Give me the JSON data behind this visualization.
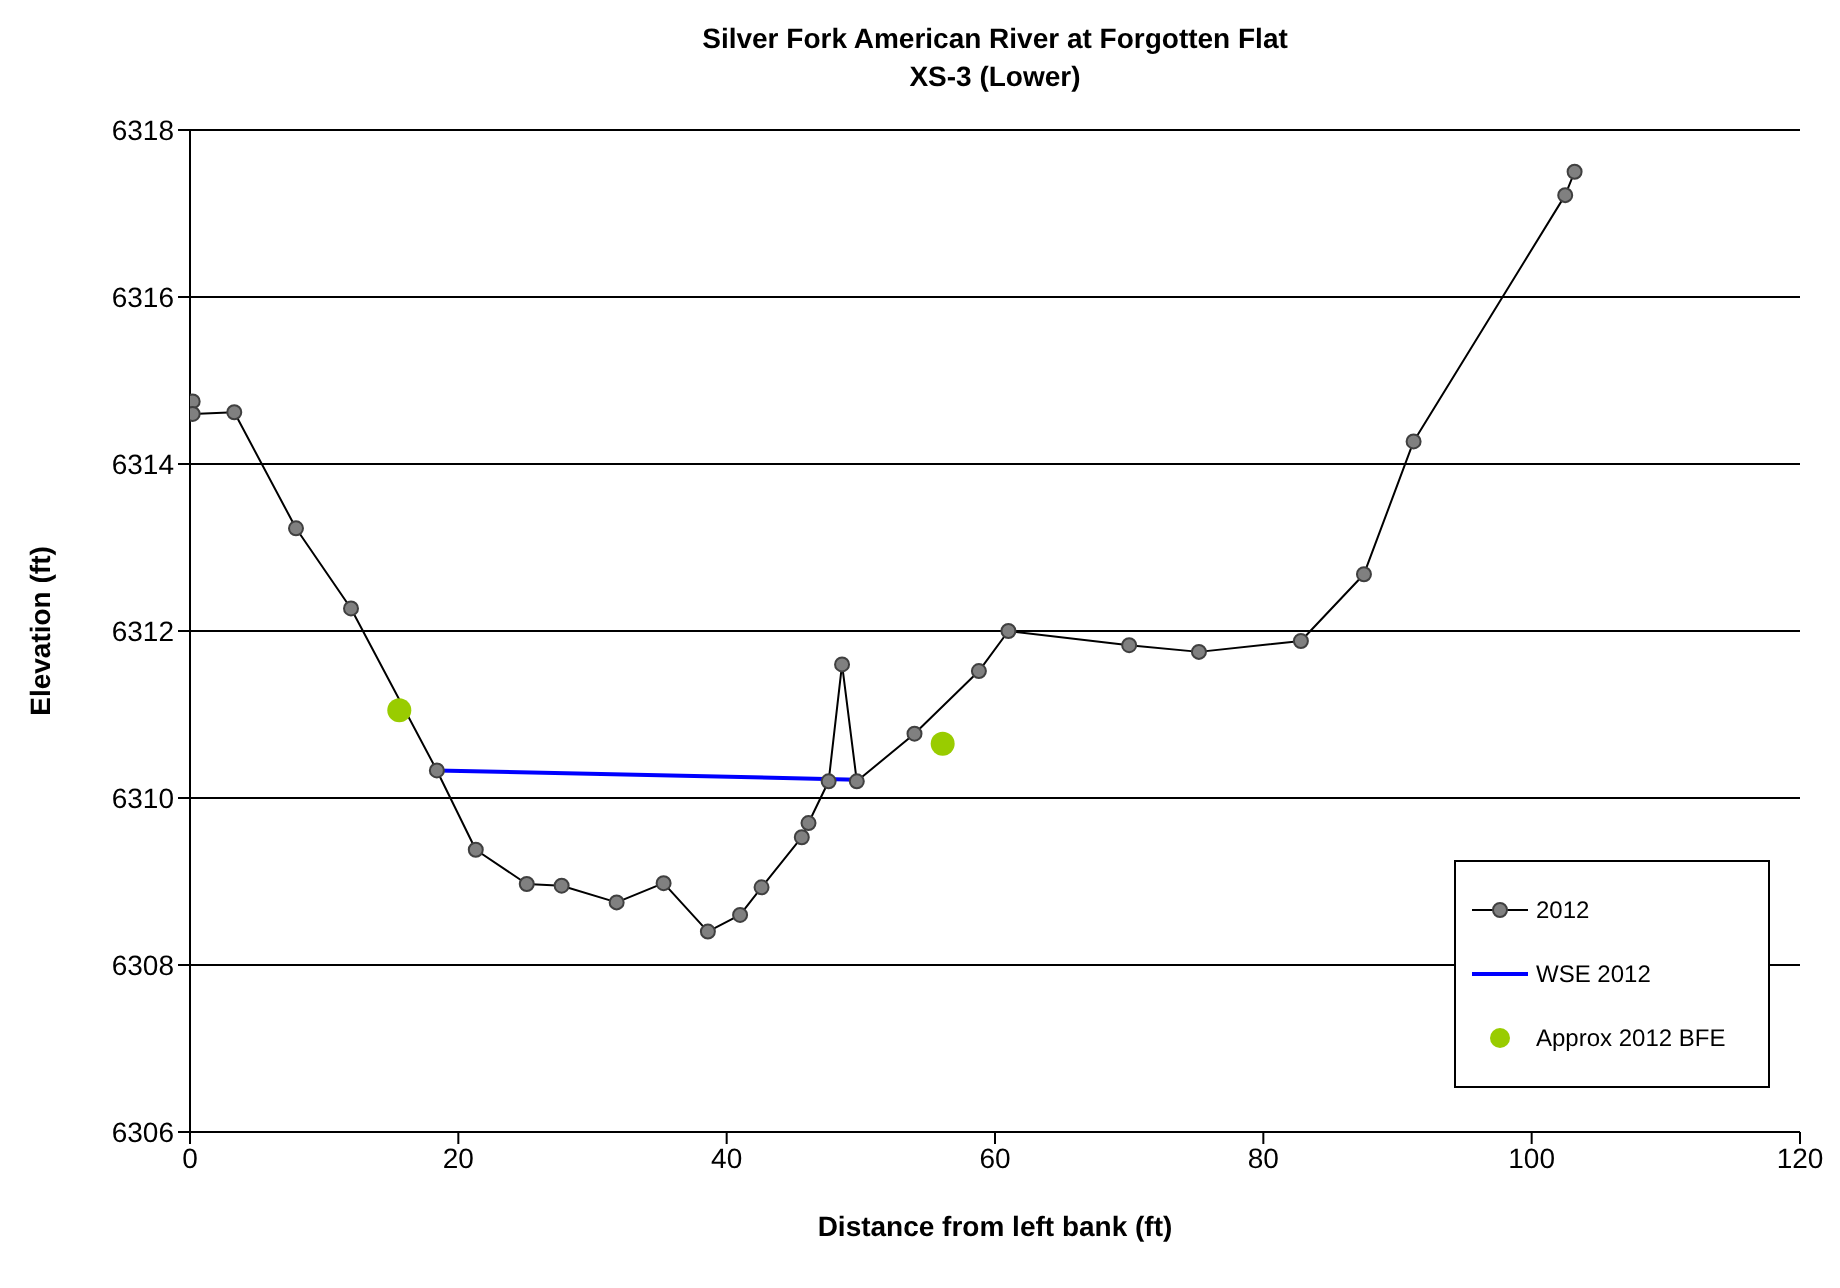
{
  "chart_data": {
    "type": "line",
    "title": "Silver Fork American River at Forgotten Flat",
    "subtitle": "XS-3 (Lower)",
    "xlabel": "Distance from left bank (ft)",
    "ylabel": "Elevation (ft)",
    "xlim": [
      0,
      120
    ],
    "xticks": [
      0,
      20,
      40,
      60,
      80,
      100,
      120
    ],
    "ylim": [
      6306,
      6318
    ],
    "yticks": [
      6306,
      6308,
      6310,
      6312,
      6314,
      6316,
      6318
    ],
    "grid": "y",
    "legend": "bottom right",
    "series": [
      {
        "name": "2012",
        "color": "#000000",
        "marker": "circle",
        "line_style": "solid",
        "x": [
          0.2,
          0.2,
          3.3,
          7.9,
          12,
          18.4,
          21.3,
          25.1,
          27.7,
          31.8,
          35.3,
          38.6,
          41.0,
          42.6,
          45.6,
          46.1,
          47.6,
          48.6,
          49.7,
          54.0,
          58.8,
          61.0,
          70.0,
          75.2,
          82.8,
          87.5,
          91.2,
          102.5,
          103.2
        ],
        "values": [
          6314.75,
          6314.6,
          6314.62,
          6313.23,
          6312.27,
          6310.33,
          6309.38,
          6308.97,
          6308.95,
          6308.75,
          6308.98,
          6308.4,
          6308.6,
          6308.93,
          6309.53,
          6309.7,
          6310.2,
          6311.6,
          6310.2,
          6310.77,
          6311.52,
          6312.0,
          6311.83,
          6311.75,
          6311.88,
          6312.68,
          6314.27,
          6317.22,
          6317.5
        ]
      },
      {
        "name": "WSE 2012",
        "color": "#0000ff",
        "marker": "none",
        "line_style": "solid",
        "x": [
          18.4,
          49.7
        ],
        "values": [
          6310.33,
          6310.22
        ]
      },
      {
        "name": "Approx 2012 BFE",
        "type": "scatter",
        "color": "#99cc00",
        "marker": "circle",
        "x": [
          15.6,
          56.1
        ],
        "values": [
          6311.05,
          6310.65
        ]
      }
    ]
  }
}
